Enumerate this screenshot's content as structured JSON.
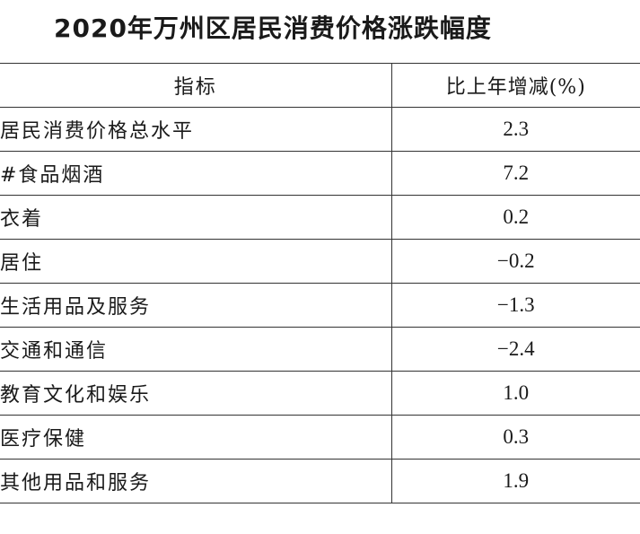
{
  "title": "2020年万州区居民消费价格涨跌幅度",
  "table": {
    "headers": {
      "indicator": "指标",
      "change": "比上年增减(%)"
    },
    "rows": [
      {
        "label": "居民消费价格总水平",
        "value": "2.3",
        "level": 0
      },
      {
        "label": "#食品烟酒",
        "value": "7.2",
        "level": 1
      },
      {
        "label": "衣着",
        "value": "0.2",
        "level": 2
      },
      {
        "label": "居住",
        "value": "−0.2",
        "level": 2
      },
      {
        "label": "生活用品及服务",
        "value": "−1.3",
        "level": 2
      },
      {
        "label": "交通和通信",
        "value": "−2.4",
        "level": 2
      },
      {
        "label": "教育文化和娱乐",
        "value": "1.0",
        "level": 2
      },
      {
        "label": "医疗保健",
        "value": "0.3",
        "level": 2
      },
      {
        "label": "其他用品和服务",
        "value": "1.9",
        "level": 2
      }
    ]
  }
}
